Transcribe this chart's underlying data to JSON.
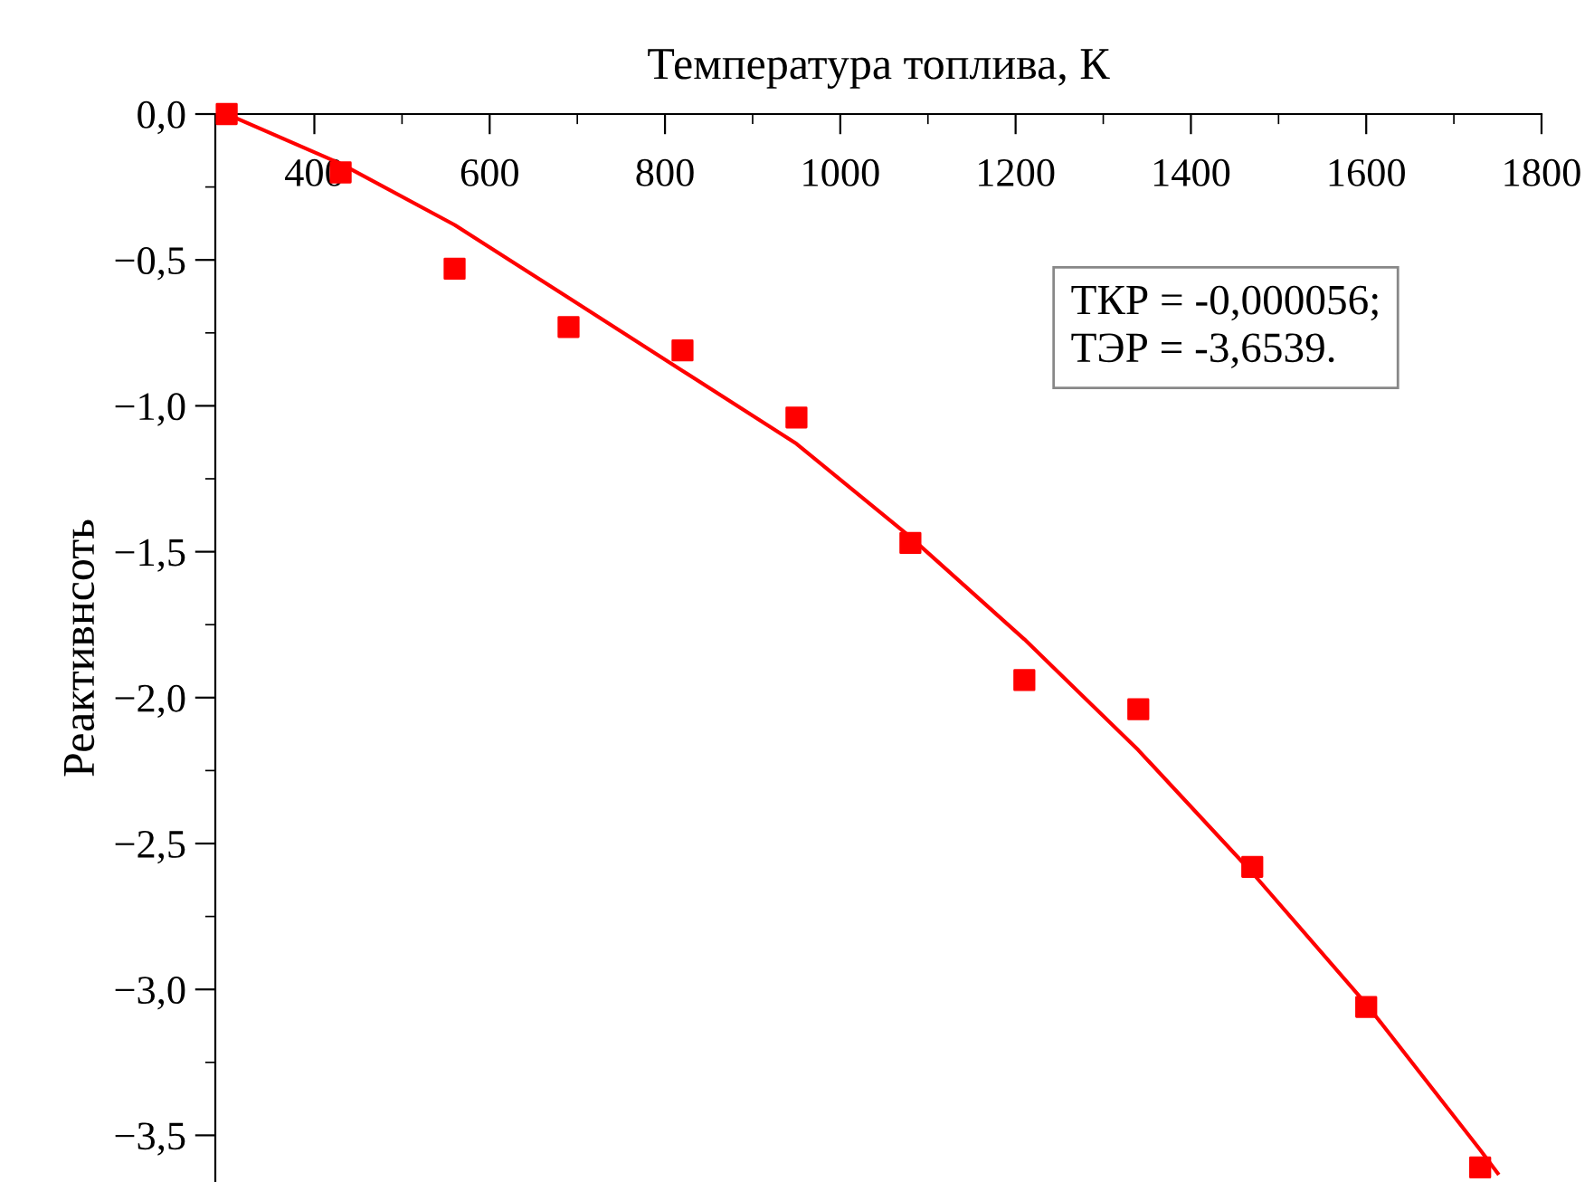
{
  "chart_data": {
    "type": "scatter",
    "xlabel": "Температура топлива, К",
    "ylabel": "Реактивнсоть",
    "xlim": [
      287,
      1800
    ],
    "xticks": [
      400,
      600,
      800,
      1000,
      1200,
      1400,
      1600,
      1800
    ],
    "ylim": [
      -3.66,
      0
    ],
    "yticks": [
      {
        "value": 0,
        "label": "0,0"
      },
      {
        "value": -0.5,
        "label": "−0,5"
      },
      {
        "value": -1.0,
        "label": "−1,0"
      },
      {
        "value": -1.5,
        "label": "−1,5"
      },
      {
        "value": -2.0,
        "label": "−2,0"
      },
      {
        "value": -2.5,
        "label": "−2,5"
      },
      {
        "value": -3.0,
        "label": "−3,0"
      },
      {
        "value": -3.5,
        "label": "−3,5"
      }
    ],
    "grid": false,
    "legend": false,
    "series": [
      {
        "color": "#ff0000",
        "marker": "square",
        "x": [
          300,
          430,
          560,
          690,
          820,
          950,
          1080,
          1210,
          1340,
          1470,
          1600,
          1730
        ],
        "values": [
          0,
          -0.2,
          -0.53,
          -0.73,
          -0.81,
          -1.04,
          -1.47,
          -1.94,
          -2.04,
          -2.58,
          -3.06,
          -3.61
        ]
      },
      {
        "type": "line",
        "color": "#ff0000",
        "marker": "none",
        "line_style": "solid",
        "x": [
          300,
          430,
          560,
          690,
          820,
          950,
          1080,
          1210,
          1340,
          1470,
          1600,
          1730,
          1750
        ],
        "values": [
          0,
          -0.17,
          -0.38,
          -0.63,
          -0.88,
          -1.13,
          -1.45,
          -1.8,
          -2.18,
          -2.6,
          -3.05,
          -3.55,
          -3.63
        ]
      }
    ],
    "annotations": [
      "ТКР = -0,000056;\nТЭР = -3,6539."
    ]
  }
}
